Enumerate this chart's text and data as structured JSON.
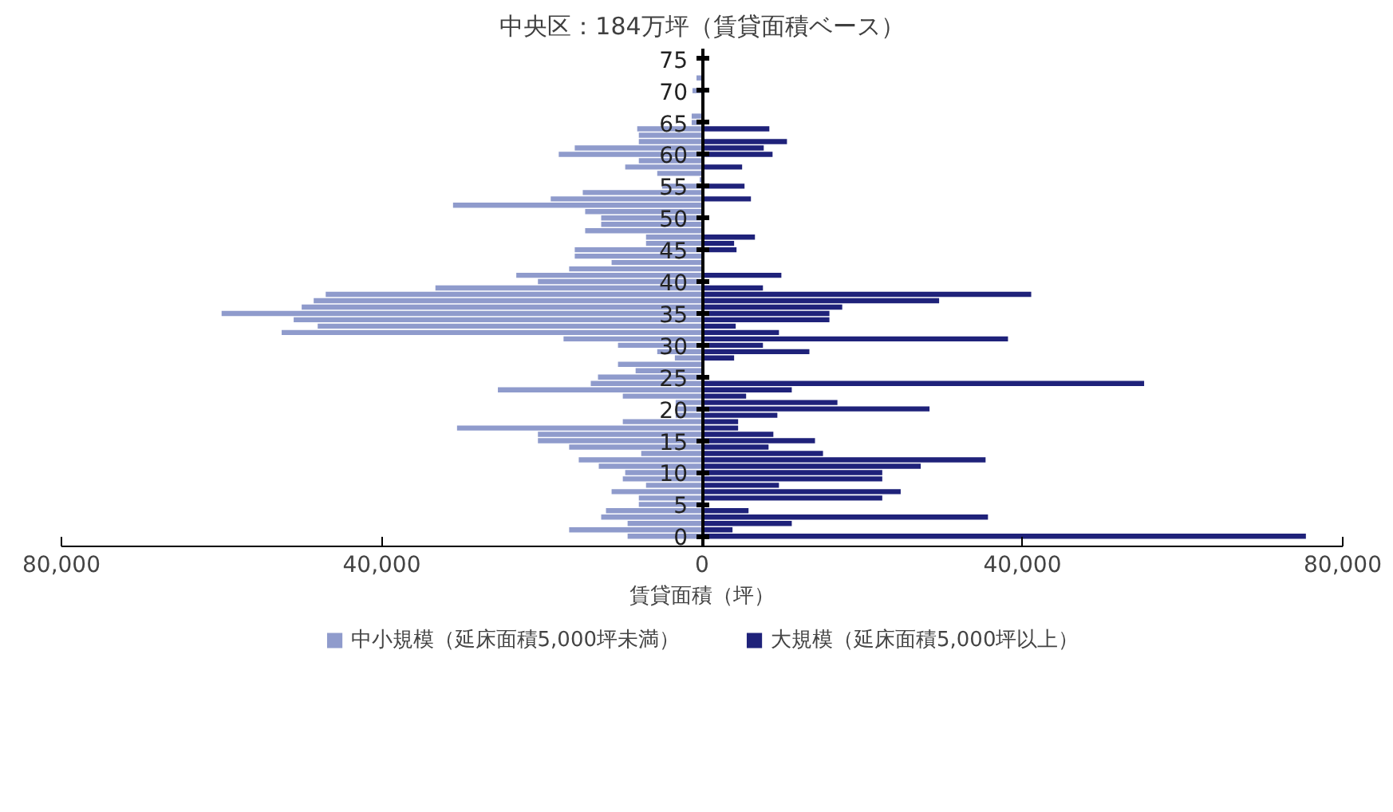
{
  "chart_data": {
    "type": "bar",
    "orientation": "horizontal",
    "title": "中央区：184万坪（賃貸面積ベース）",
    "xlabel": "賃貸面積（坪）",
    "categories": [
      "75",
      null,
      null,
      null,
      null,
      "70",
      null,
      null,
      null,
      null,
      "65",
      null,
      null,
      null,
      null,
      "60",
      null,
      null,
      null,
      null,
      "55",
      null,
      null,
      null,
      null,
      "50",
      null,
      null,
      null,
      null,
      "45",
      null,
      null,
      null,
      null,
      "40",
      null,
      null,
      null,
      null,
      "35",
      null,
      null,
      null,
      null,
      "30",
      null,
      null,
      null,
      null,
      "25",
      null,
      null,
      null,
      null,
      "20",
      null,
      null,
      null,
      null,
      "15",
      null,
      null,
      null,
      null,
      "10",
      null,
      null,
      null,
      null,
      "5",
      null,
      null,
      null,
      null,
      "0"
    ],
    "series": [
      {
        "name": "中小規模（延床面積5,000坪未満）",
        "color": "#8f9bcc",
        "values": [
          0,
          0,
          0,
          -700,
          0,
          -1200,
          0,
          0,
          0,
          -1300,
          -1300,
          -8100,
          -7900,
          -7900,
          -15900,
          -17900,
          -7900,
          -9600,
          -5600,
          -300,
          -5000,
          -14900,
          -18900,
          -31100,
          -14600,
          -12600,
          -12600,
          -14600,
          -7000,
          -7000,
          -15900,
          -15900,
          -11300,
          -16600,
          -23200,
          -20500,
          -33300,
          -47000,
          -48500,
          -50000,
          -60000,
          -51000,
          -48000,
          -52500,
          -17300,
          -10500,
          -5600,
          -3400,
          -10500,
          -8300,
          -13000,
          -13900,
          -25500,
          -9900,
          -3300,
          -3300,
          -3300,
          -9900,
          -30600,
          -20500,
          -20500,
          -16600,
          -7600,
          -15400,
          -12900,
          -9600,
          -9900,
          -7000,
          -11300,
          -7900,
          -7900,
          -12000,
          -12600,
          -9300,
          -16600,
          -9300
        ]
      },
      {
        "name": "大規模（延床面積5,000坪以上）",
        "color": "#1f227a",
        "values": [
          0,
          0,
          0,
          0,
          0,
          0,
          0,
          0,
          0,
          0,
          0,
          8400,
          0,
          10600,
          7700,
          8800,
          0,
          5000,
          0,
          0,
          5300,
          0,
          6100,
          0,
          0,
          0,
          0,
          0,
          6600,
          4000,
          4300,
          0,
          0,
          0,
          9900,
          0,
          7600,
          41100,
          29600,
          17500,
          15900,
          15900,
          4200,
          9600,
          38200,
          7600,
          13400,
          4000,
          0,
          0,
          0,
          55200,
          11200,
          5500,
          16900,
          28400,
          9400,
          4500,
          4500,
          8900,
          14100,
          8300,
          15100,
          35400,
          27300,
          22500,
          22500,
          9600,
          24800,
          22500,
          0,
          5800,
          35700,
          11200,
          3800,
          75400
        ]
      }
    ],
    "xlim": [
      -80000,
      80000
    ],
    "xticks": [
      {
        "value": -80000,
        "label": "80,000"
      },
      {
        "value": -40000,
        "label": "40,000"
      },
      0,
      {
        "value": 40000,
        "label": "40,000"
      },
      {
        "value": 80000,
        "label": "80,000"
      }
    ],
    "stacked": true,
    "grid": false,
    "legend": "bottom"
  }
}
